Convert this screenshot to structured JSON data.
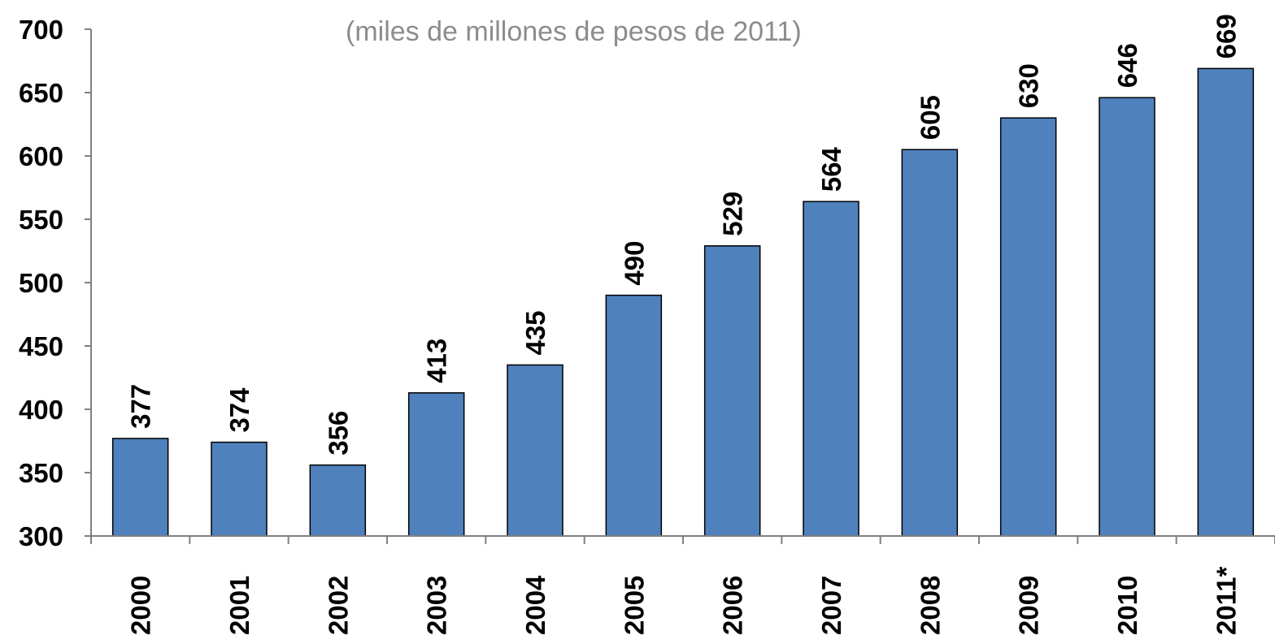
{
  "chart_data": {
    "type": "bar",
    "title": "",
    "subtitle": "(miles de millones de pesos de 2011)",
    "xlabel": "",
    "ylabel": "",
    "categories": [
      "2000",
      "2001",
      "2002",
      "2003",
      "2004",
      "2005",
      "2006",
      "2007",
      "2008",
      "2009",
      "2010",
      "2011*"
    ],
    "values": [
      377,
      374,
      356,
      413,
      435,
      490,
      529,
      564,
      605,
      630,
      646,
      669
    ],
    "data_labels": [
      "377",
      "374",
      "356",
      "413",
      "435",
      "490",
      "529",
      "564",
      "605",
      "630",
      "646",
      "669"
    ],
    "ylim": [
      300,
      700
    ],
    "yticks": [
      300,
      350,
      400,
      450,
      500,
      550,
      600,
      650,
      700
    ],
    "ytick_labels": [
      "300",
      "350",
      "400",
      "450",
      "500",
      "550",
      "600",
      "650",
      "700"
    ],
    "grid": false,
    "legend": "none",
    "colors": {
      "bar_fill": "#4f81bd",
      "bar_stroke": "#000000",
      "axis": "#808080",
      "subtitle": "#8c8c8c",
      "label": "#000000"
    }
  }
}
